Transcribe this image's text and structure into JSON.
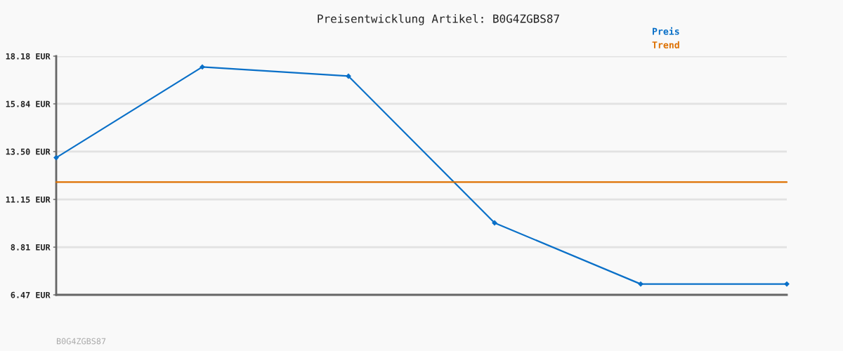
{
  "chart_data": {
    "type": "line",
    "title": "Preisentwicklung Artikel: B0G4ZGBS87",
    "categories": [
      null,
      null,
      null,
      null,
      null,
      null
    ],
    "series": [
      {
        "name": "Preis",
        "color": "#0a70c8",
        "values": [
          13.2,
          17.65,
          17.2,
          10.0,
          7.0,
          7.0
        ],
        "marker": "diamond"
      },
      {
        "name": "Trend",
        "color": "#dd7000",
        "values": [
          12.0,
          12.0,
          12.0,
          12.0,
          12.0,
          12.0
        ],
        "marker": "none"
      }
    ],
    "ylim": [
      6.47,
      18.18
    ],
    "yticks": [
      {
        "value": 6.47,
        "label": "6.47 EUR"
      },
      {
        "value": 8.81,
        "label": "8.81 EUR"
      },
      {
        "value": 11.15,
        "label": "11.15 EUR"
      },
      {
        "value": 13.5,
        "label": "13.50 EUR"
      },
      {
        "value": 15.84,
        "label": "15.84 EUR"
      },
      {
        "value": 18.18,
        "label": "18.18 EUR"
      }
    ],
    "grid": "y",
    "legend": "top right",
    "tick_labels": "y",
    "line_style": "solid",
    "annotations": [
      "B0G4ZGBS87"
    ]
  }
}
